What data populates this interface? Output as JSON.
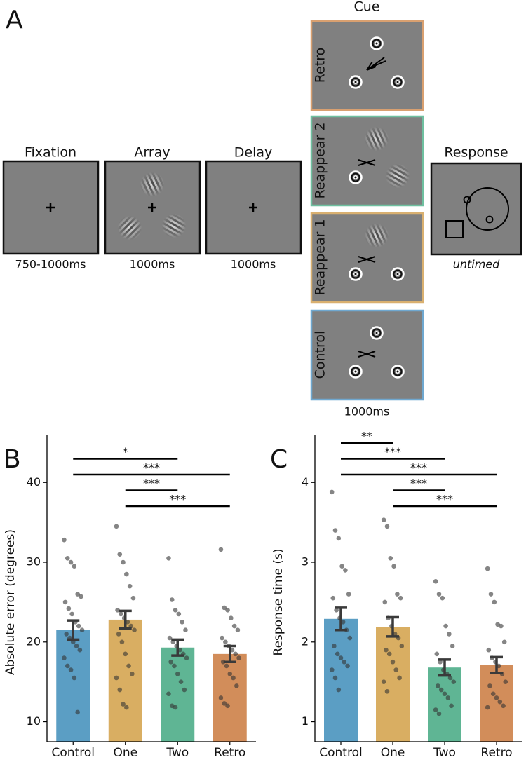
{
  "panel_labels": [
    "A",
    "B",
    "C"
  ],
  "diagram": {
    "stages": [
      {
        "title": "Fixation",
        "duration": "750-1000ms"
      },
      {
        "title": "Array",
        "duration": "1000ms"
      },
      {
        "title": "Delay",
        "duration": "1000ms"
      }
    ],
    "cue": {
      "title": "Cue",
      "conditions": [
        "Retro",
        "Reappear 2",
        "Reappear 1",
        "Control"
      ],
      "duration": "1000ms"
    },
    "response": {
      "title": "Response",
      "duration": "untimed"
    }
  },
  "chart_data": [
    {
      "type": "bar",
      "ylabel": "Absolute error (degrees)",
      "categories": [
        "Control",
        "One",
        "Two",
        "Retro"
      ],
      "values": [
        21.5,
        22.8,
        19.3,
        18.5
      ],
      "errors": [
        1.2,
        1.1,
        1.0,
        1.0
      ],
      "colors": [
        "#5b9ec4",
        "#d9ae62",
        "#5fb594",
        "#d28d5a"
      ],
      "points": [
        [
          32.8,
          30.5,
          30,
          29.5,
          26,
          25.7,
          25,
          24.2,
          23.5,
          22.5,
          22,
          21.5,
          21,
          20.5,
          20,
          19.5,
          19,
          18,
          17,
          16.5,
          15.5,
          11.2
        ],
        [
          34.5,
          31,
          30,
          28.5,
          27,
          25.5,
          24,
          23.5,
          23,
          22.5,
          22,
          21.5,
          21,
          20,
          18.5,
          17,
          16,
          15.5,
          14,
          12.2,
          11.8
        ],
        [
          30.5,
          25.3,
          24,
          23.5,
          22.5,
          21.5,
          20.5,
          20,
          19.5,
          19,
          18.5,
          18,
          17.5,
          17,
          16,
          15,
          14,
          13.5,
          12,
          11.8
        ],
        [
          31.6,
          24.3,
          24,
          23,
          22,
          21.5,
          20.5,
          20,
          19.5,
          19,
          18.5,
          18,
          17.5,
          17,
          16,
          15.5,
          14.5,
          13,
          12.3,
          12
        ]
      ],
      "ylim": [
        7.5,
        46
      ],
      "yticks": [
        10,
        20,
        30,
        40
      ],
      "significance": [
        {
          "from": "Control",
          "to": "Two",
          "label": "*"
        },
        {
          "from": "Control",
          "to": "Retro",
          "label": "***"
        },
        {
          "from": "One",
          "to": "Two",
          "label": "***"
        },
        {
          "from": "One",
          "to": "Retro",
          "label": "***"
        }
      ]
    },
    {
      "type": "bar",
      "ylabel": "Response time (s)",
      "categories": [
        "Control",
        "One",
        "Two",
        "Retro"
      ],
      "values": [
        2.29,
        2.19,
        1.68,
        1.71
      ],
      "errors": [
        0.14,
        0.12,
        0.1,
        0.1
      ],
      "colors": [
        "#5b9ec4",
        "#d9ae62",
        "#5fb594",
        "#d28d5a"
      ],
      "points": [
        [
          3.88,
          3.4,
          3.3,
          2.95,
          2.9,
          2.6,
          2.55,
          2.4,
          2.3,
          2.25,
          2.15,
          2.05,
          1.95,
          1.85,
          1.8,
          1.75,
          1.7,
          1.65,
          1.55,
          1.4
        ],
        [
          3.53,
          3.45,
          3.05,
          2.95,
          2.6,
          2.55,
          2.5,
          2.3,
          2.2,
          2.1,
          2.05,
          1.95,
          1.9,
          1.85,
          1.75,
          1.65,
          1.55,
          1.5,
          1.38
        ],
        [
          2.76,
          2.6,
          2.55,
          2.2,
          2.1,
          1.95,
          1.85,
          1.75,
          1.65,
          1.6,
          1.55,
          1.5,
          1.45,
          1.4,
          1.35,
          1.3,
          1.2,
          1.15,
          1.1
        ],
        [
          2.92,
          2.6,
          2.5,
          2.22,
          2.2,
          2.0,
          1.9,
          1.8,
          1.75,
          1.7,
          1.6,
          1.5,
          1.45,
          1.35,
          1.3,
          1.25,
          1.2,
          1.18
        ]
      ],
      "ylim": [
        0.75,
        4.6
      ],
      "yticks": [
        1,
        2,
        3,
        4
      ],
      "significance": [
        {
          "from": "Control",
          "to": "One",
          "label": "**"
        },
        {
          "from": "Control",
          "to": "Two",
          "label": "***"
        },
        {
          "from": "Control",
          "to": "Retro",
          "label": "***"
        },
        {
          "from": "One",
          "to": "Two",
          "label": "***"
        },
        {
          "from": "One",
          "to": "Retro",
          "label": "***"
        }
      ]
    }
  ]
}
